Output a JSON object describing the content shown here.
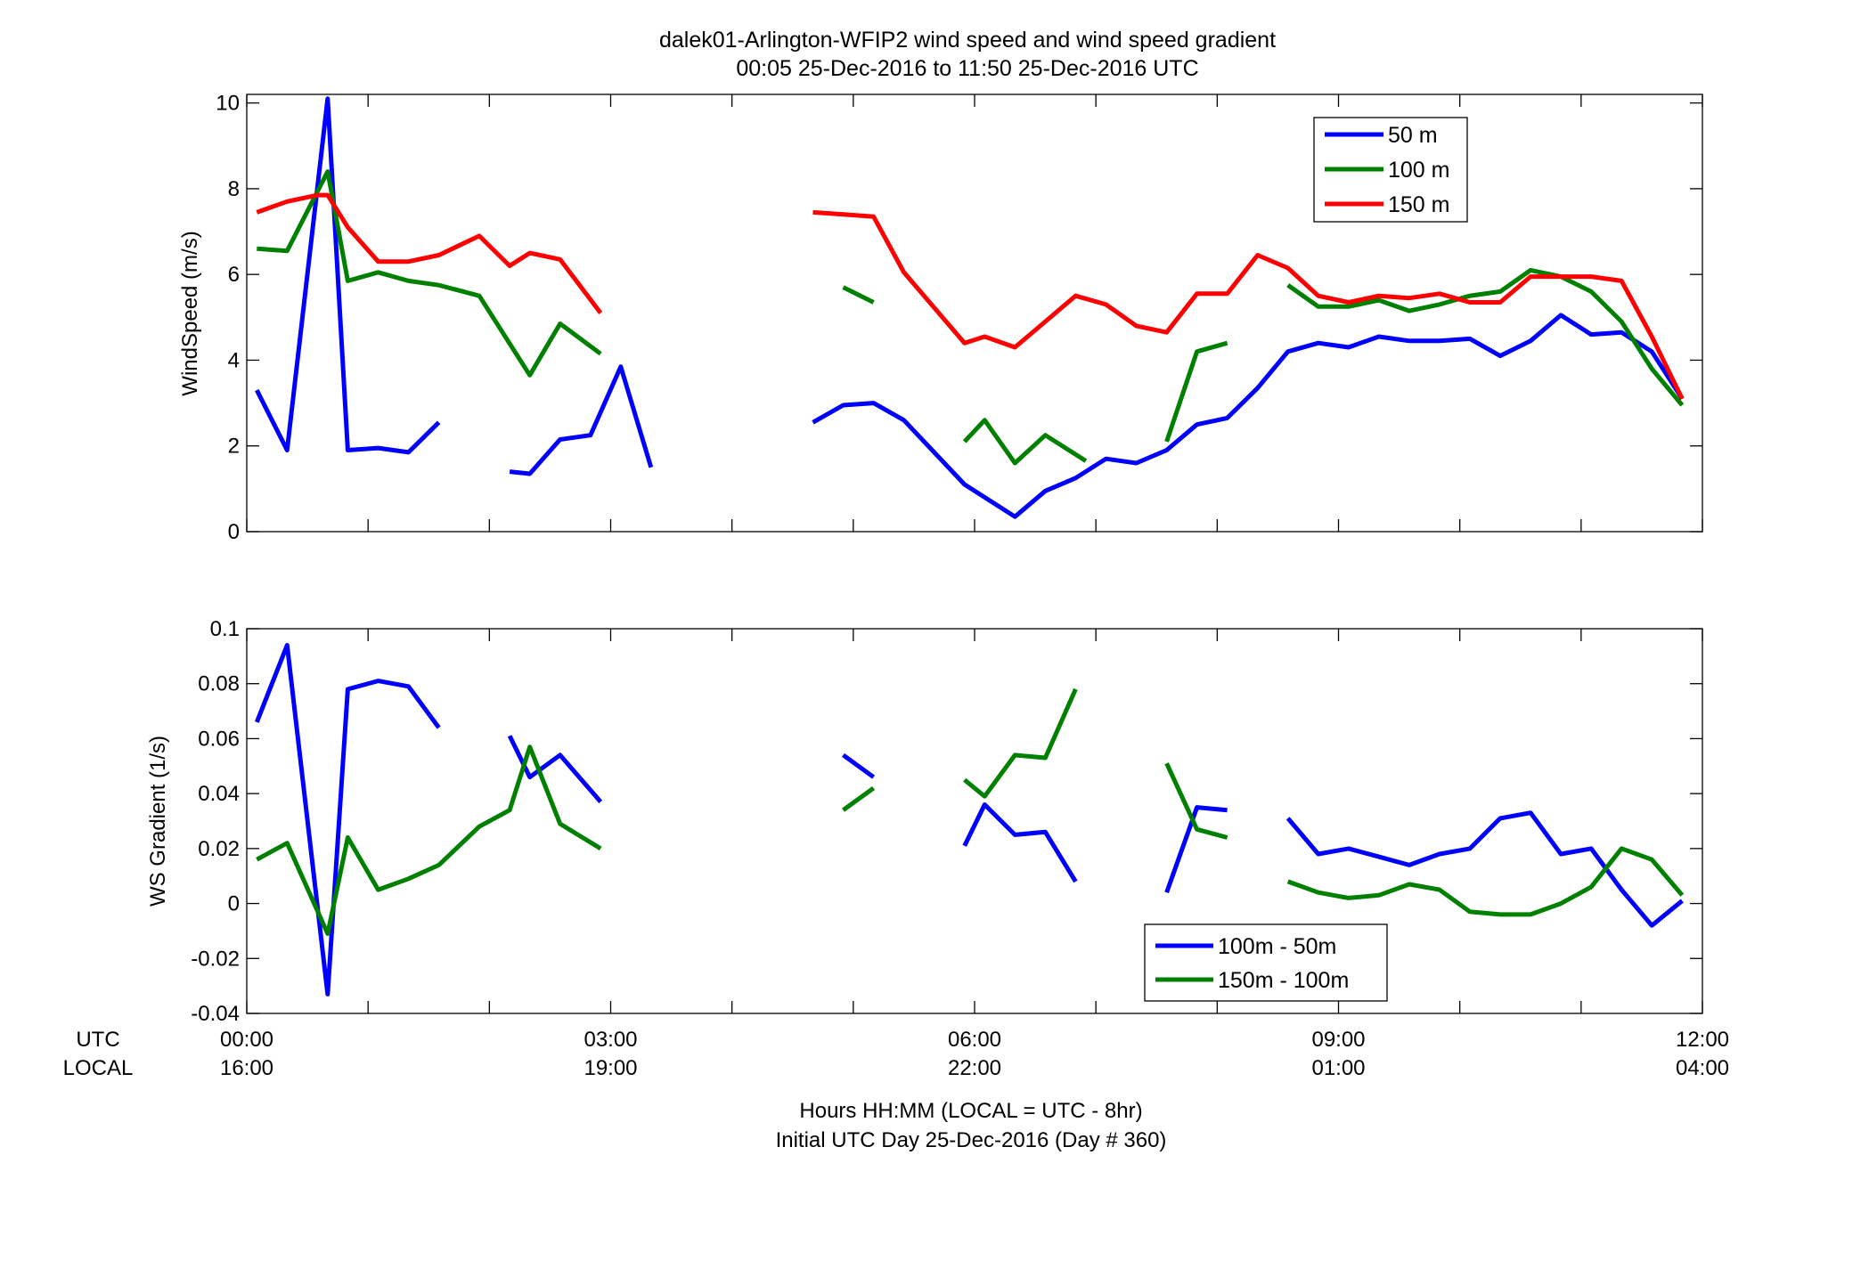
{
  "chart_data": [
    {
      "type": "line",
      "title": "dalek01-Arlington-WFIP2  wind speed and wind speed gradient",
      "subtitle": "00:05 25-Dec-2016 to 11:50 25-Dec-2016  UTC",
      "xlabel": "",
      "ylabel": "WindSpeed (m/s)",
      "xlim": [
        0,
        12
      ],
      "ylim": [
        0,
        10.2
      ],
      "yticks": [
        0,
        2,
        4,
        6,
        8,
        10
      ],
      "ytick_labels": [
        "0",
        "2",
        "4",
        "6",
        "8",
        "10"
      ],
      "grid": false,
      "legend_position": "top-right",
      "series": [
        {
          "name": "50 m",
          "color": "#0000ff",
          "segments": [
            [
              [
                0.083,
                3.3
              ],
              [
                0.333,
                1.9
              ],
              [
                0.667,
                10.1
              ],
              [
                0.833,
                1.9
              ],
              [
                1.083,
                1.95
              ],
              [
                1.333,
                1.85
              ],
              [
                1.583,
                2.55
              ]
            ],
            [
              [
                2.167,
                1.4
              ],
              [
                2.333,
                1.35
              ],
              [
                2.583,
                2.15
              ],
              [
                2.833,
                2.25
              ],
              [
                3.083,
                3.85
              ],
              [
                3.333,
                1.5
              ]
            ],
            [
              [
                4.667,
                2.55
              ],
              [
                4.917,
                2.95
              ],
              [
                5.167,
                3.0
              ],
              [
                5.417,
                2.6
              ],
              [
                5.917,
                1.1
              ],
              [
                6.333,
                0.35
              ],
              [
                6.583,
                0.95
              ],
              [
                6.833,
                1.25
              ],
              [
                7.083,
                1.7
              ],
              [
                7.333,
                1.6
              ],
              [
                7.583,
                1.9
              ],
              [
                7.833,
                2.5
              ],
              [
                8.083,
                2.65
              ],
              [
                8.333,
                3.35
              ],
              [
                8.583,
                4.2
              ],
              [
                8.833,
                4.4
              ],
              [
                9.083,
                4.3
              ],
              [
                9.333,
                4.55
              ],
              [
                9.583,
                4.45
              ],
              [
                9.833,
                4.45
              ],
              [
                10.083,
                4.5
              ],
              [
                10.333,
                4.1
              ],
              [
                10.583,
                4.45
              ],
              [
                10.833,
                5.05
              ],
              [
                11.083,
                4.6
              ],
              [
                11.333,
                4.65
              ],
              [
                11.583,
                4.2
              ],
              [
                11.833,
                3.1
              ]
            ]
          ]
        },
        {
          "name": "100 m",
          "color": "#008000",
          "segments": [
            [
              [
                0.083,
                6.6
              ],
              [
                0.333,
                6.55
              ],
              [
                0.667,
                8.4
              ],
              [
                0.833,
                5.85
              ],
              [
                1.083,
                6.05
              ],
              [
                1.333,
                5.85
              ],
              [
                1.583,
                5.75
              ],
              [
                1.917,
                5.5
              ],
              [
                2.333,
                3.65
              ],
              [
                2.583,
                4.85
              ],
              [
                2.917,
                4.15
              ]
            ],
            [
              [
                4.917,
                5.7
              ],
              [
                5.167,
                5.35
              ]
            ],
            [
              [
                5.917,
                2.1
              ],
              [
                6.083,
                2.6
              ],
              [
                6.333,
                1.6
              ],
              [
                6.583,
                2.25
              ],
              [
                6.917,
                1.65
              ]
            ],
            [
              [
                7.583,
                2.1
              ],
              [
                7.833,
                4.2
              ],
              [
                8.083,
                4.4
              ]
            ],
            [
              [
                8.583,
                5.75
              ],
              [
                8.833,
                5.25
              ],
              [
                9.083,
                5.25
              ],
              [
                9.333,
                5.4
              ],
              [
                9.583,
                5.15
              ],
              [
                9.833,
                5.3
              ],
              [
                10.083,
                5.5
              ],
              [
                10.333,
                5.6
              ],
              [
                10.583,
                6.1
              ],
              [
                10.833,
                5.95
              ],
              [
                11.083,
                5.6
              ],
              [
                11.333,
                4.9
              ],
              [
                11.583,
                3.8
              ],
              [
                11.833,
                2.95
              ]
            ]
          ]
        },
        {
          "name": "150 m",
          "color": "#ff0000",
          "segments": [
            [
              [
                0.083,
                7.45
              ],
              [
                0.333,
                7.7
              ],
              [
                0.583,
                7.85
              ],
              [
                0.667,
                7.85
              ],
              [
                0.833,
                7.1
              ],
              [
                1.083,
                6.3
              ],
              [
                1.333,
                6.3
              ],
              [
                1.583,
                6.45
              ],
              [
                1.917,
                6.9
              ],
              [
                2.167,
                6.2
              ],
              [
                2.333,
                6.5
              ],
              [
                2.583,
                6.35
              ],
              [
                2.917,
                5.1
              ]
            ],
            [
              [
                4.667,
                7.45
              ],
              [
                4.917,
                7.4
              ],
              [
                5.167,
                7.35
              ],
              [
                5.417,
                6.05
              ],
              [
                5.917,
                4.4
              ],
              [
                6.083,
                4.55
              ],
              [
                6.333,
                4.3
              ],
              [
                6.583,
                4.9
              ],
              [
                6.833,
                5.5
              ],
              [
                7.083,
                5.3
              ],
              [
                7.333,
                4.8
              ],
              [
                7.583,
                4.65
              ],
              [
                7.833,
                5.55
              ],
              [
                8.083,
                5.55
              ],
              [
                8.333,
                6.45
              ],
              [
                8.583,
                6.15
              ],
              [
                8.833,
                5.5
              ],
              [
                9.083,
                5.35
              ],
              [
                9.333,
                5.5
              ],
              [
                9.583,
                5.45
              ],
              [
                9.833,
                5.55
              ],
              [
                10.083,
                5.35
              ],
              [
                10.333,
                5.35
              ],
              [
                10.583,
                5.95
              ],
              [
                10.833,
                5.95
              ],
              [
                11.083,
                5.95
              ],
              [
                11.333,
                5.85
              ],
              [
                11.583,
                4.55
              ],
              [
                11.833,
                3.1
              ]
            ]
          ]
        }
      ]
    },
    {
      "type": "line",
      "xlabel": "Hours HH:MM  (LOCAL = UTC - 8hr)",
      "xlabel2": "Initial UTC Day 25-Dec-2016 (Day # 360)",
      "ylabel": "WS Gradient (1/s)",
      "xlim": [
        0,
        12
      ],
      "ylim": [
        -0.04,
        0.1
      ],
      "yticks": [
        -0.04,
        -0.02,
        0,
        0.02,
        0.04,
        0.06,
        0.08,
        0.1
      ],
      "ytick_labels": [
        "-0.04",
        "-0.02",
        "0",
        "0.02",
        "0.04",
        "0.06",
        "0.08",
        "0.1"
      ],
      "xticks": [
        0,
        3,
        6,
        9,
        12
      ],
      "row_labels": [
        "UTC",
        "LOCAL"
      ],
      "xtick_labels_utc": [
        "00:00",
        "03:00",
        "06:00",
        "09:00",
        "12:00"
      ],
      "xtick_labels_local": [
        "16:00",
        "19:00",
        "22:00",
        "01:00",
        "04:00"
      ],
      "grid": false,
      "legend_position": "bottom-right",
      "series": [
        {
          "name": "100m - 50m",
          "color": "#0000ff",
          "segments": [
            [
              [
                0.083,
                0.066
              ],
              [
                0.333,
                0.094
              ],
              [
                0.667,
                -0.033
              ],
              [
                0.833,
                0.078
              ],
              [
                1.083,
                0.081
              ],
              [
                1.333,
                0.079
              ],
              [
                1.583,
                0.064
              ]
            ],
            [
              [
                2.167,
                0.061
              ],
              [
                2.333,
                0.046
              ],
              [
                2.583,
                0.054
              ],
              [
                2.917,
                0.037
              ]
            ],
            [
              [
                4.917,
                0.054
              ],
              [
                5.167,
                0.046
              ]
            ],
            [
              [
                5.917,
                0.021
              ],
              [
                6.083,
                0.036
              ],
              [
                6.333,
                0.025
              ],
              [
                6.583,
                0.026
              ],
              [
                6.833,
                0.008
              ]
            ],
            [
              [
                7.583,
                0.004
              ],
              [
                7.833,
                0.035
              ],
              [
                8.083,
                0.034
              ]
            ],
            [
              [
                8.583,
                0.031
              ],
              [
                8.833,
                0.018
              ],
              [
                9.083,
                0.02
              ],
              [
                9.333,
                0.017
              ],
              [
                9.583,
                0.014
              ],
              [
                9.833,
                0.018
              ],
              [
                10.083,
                0.02
              ],
              [
                10.333,
                0.031
              ],
              [
                10.583,
                0.033
              ],
              [
                10.833,
                0.018
              ],
              [
                11.083,
                0.02
              ],
              [
                11.333,
                0.005
              ],
              [
                11.583,
                -0.008
              ],
              [
                11.833,
                0.001
              ]
            ]
          ]
        },
        {
          "name": "150m - 100m",
          "color": "#008000",
          "segments": [
            [
              [
                0.083,
                0.016
              ],
              [
                0.333,
                0.022
              ],
              [
                0.667,
                -0.011
              ],
              [
                0.833,
                0.024
              ],
              [
                1.083,
                0.005
              ],
              [
                1.333,
                0.009
              ],
              [
                1.583,
                0.014
              ],
              [
                1.917,
                0.028
              ],
              [
                2.167,
                0.034
              ],
              [
                2.333,
                0.057
              ],
              [
                2.583,
                0.029
              ],
              [
                2.917,
                0.02
              ]
            ],
            [
              [
                4.917,
                0.034
              ],
              [
                5.167,
                0.042
              ]
            ],
            [
              [
                5.917,
                0.045
              ],
              [
                6.083,
                0.039
              ],
              [
                6.333,
                0.054
              ],
              [
                6.583,
                0.053
              ],
              [
                6.833,
                0.078
              ]
            ],
            [
              [
                7.583,
                0.051
              ],
              [
                7.833,
                0.027
              ],
              [
                8.083,
                0.024
              ]
            ],
            [
              [
                8.583,
                0.008
              ],
              [
                8.833,
                0.004
              ],
              [
                9.083,
                0.002
              ],
              [
                9.333,
                0.003
              ],
              [
                9.583,
                0.007
              ],
              [
                9.833,
                0.005
              ],
              [
                10.083,
                -0.003
              ],
              [
                10.333,
                -0.004
              ],
              [
                10.583,
                -0.004
              ],
              [
                10.833,
                0.0
              ],
              [
                11.083,
                0.006
              ],
              [
                11.333,
                0.02
              ],
              [
                11.583,
                0.016
              ],
              [
                11.833,
                0.003
              ]
            ]
          ]
        }
      ]
    }
  ]
}
